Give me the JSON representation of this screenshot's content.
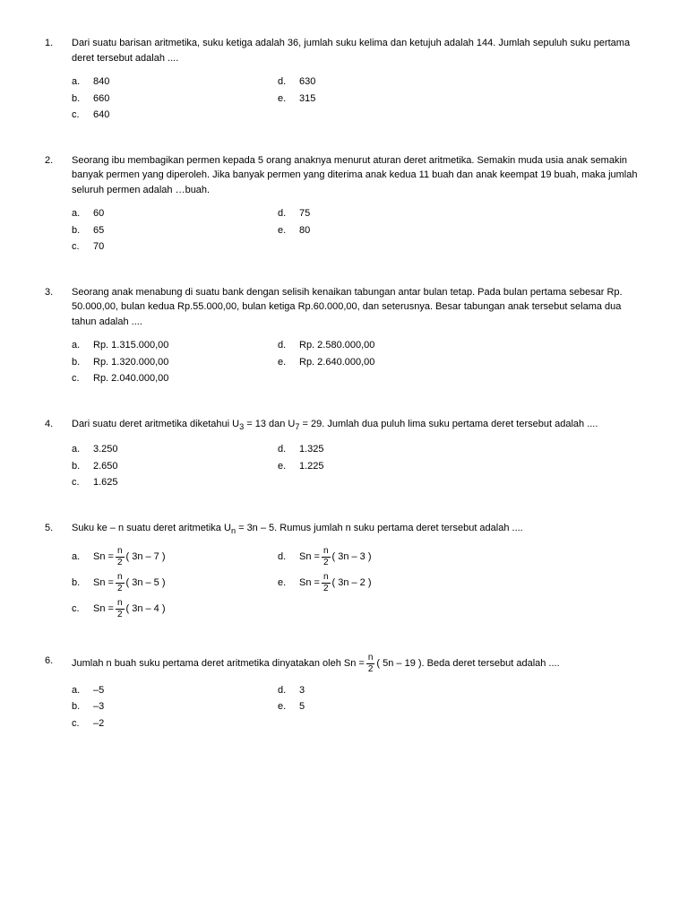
{
  "questions": [
    {
      "num": "1.",
      "text": "Dari suatu barisan aritmetika, suku ketiga adalah 36, jumlah suku kelima dan ketujuh adalah 144. Jumlah sepuluh suku pertama deret tersebut adalah ....",
      "left": [
        {
          "l": "a.",
          "v": "840"
        },
        {
          "l": "b.",
          "v": "660"
        },
        {
          "l": "c.",
          "v": "640"
        }
      ],
      "right": [
        {
          "l": "d.",
          "v": "630"
        },
        {
          "l": "e.",
          "v": "315"
        }
      ]
    },
    {
      "num": "2.",
      "text": "Seorang ibu membagikan permen kepada 5 orang anaknya menurut aturan deret aritmetika. Semakin muda usia anak semakin banyak permen yang diperoleh. Jika banyak permen yang diterima anak kedua 11 buah dan anak keempat 19 buah, maka jumlah seluruh permen adalah …buah.",
      "left": [
        {
          "l": "a.",
          "v": "60"
        },
        {
          "l": "b.",
          "v": "65"
        },
        {
          "l": "c.",
          "v": "70"
        }
      ],
      "right": [
        {
          "l": "d.",
          "v": "75"
        },
        {
          "l": "e.",
          "v": "80"
        }
      ]
    },
    {
      "num": "3.",
      "text": "Seorang anak menabung di suatu bank dengan selisih kenaikan tabungan antar bulan tetap. Pada bulan pertama sebesar Rp. 50.000,00, bulan kedua Rp.55.000,00, bulan ketiga Rp.60.000,00, dan seterusnya. Besar tabungan anak tersebut selama dua tahun adalah ....",
      "left": [
        {
          "l": "a.",
          "v": "Rp. 1.315.000,00"
        },
        {
          "l": "b.",
          "v": "Rp. 1.320.000,00"
        },
        {
          "l": "c.",
          "v": "Rp. 2.040.000,00"
        }
      ],
      "right": [
        {
          "l": "d.",
          "v": "Rp. 2.580.000,00"
        },
        {
          "l": "e.",
          "v": "Rp. 2.640.000,00"
        }
      ]
    },
    {
      "num": "4.",
      "text_html": "q4",
      "text_parts": {
        "pre": "Dari suatu deret aritmetika diketahui U",
        "sub1": "3",
        "mid": " = 13 dan U",
        "sub2": "7",
        "post": " = 29. Jumlah dua puluh lima suku pertama deret tersebut adalah ...."
      },
      "left": [
        {
          "l": "a.",
          "v": "3.250"
        },
        {
          "l": "b.",
          "v": "2.650"
        },
        {
          "l": "c.",
          "v": "1.625"
        }
      ],
      "right": [
        {
          "l": "d.",
          "v": "1.325"
        },
        {
          "l": "e.",
          "v": "1.225"
        }
      ]
    },
    {
      "num": "5.",
      "text_html": "q5",
      "text_parts": {
        "pre": "Suku ke – n suatu deret aritmetika U",
        "sub1": "n",
        "post": " = 3n – 5. Rumus jumlah n suku pertama deret tersebut adalah ...."
      },
      "frac_opts": {
        "left": [
          {
            "l": "a.",
            "pre": "Sn = ",
            "num": "n",
            "den": "2",
            "post": " ( 3n – 7 )"
          },
          {
            "l": "b.",
            "pre": "Sn = ",
            "num": "n",
            "den": "2",
            "post": " ( 3n – 5 )"
          },
          {
            "l": "c.",
            "pre": "Sn = ",
            "num": "n",
            "den": "2",
            "post": " ( 3n – 4 )"
          }
        ],
        "right": [
          {
            "l": "d.",
            "pre": "Sn = ",
            "num": "n",
            "den": "2",
            "post": " ( 3n – 3 )"
          },
          {
            "l": "e.",
            "pre": "Sn = ",
            "num": "n",
            "den": "2",
            "post": " ( 3n – 2 )"
          }
        ]
      }
    },
    {
      "num": "6.",
      "text_html": "q6",
      "text_parts": {
        "pre": "Jumlah n buah suku pertama deret aritmetika dinyatakan oleh Sn = ",
        "num": "n",
        "den": "2",
        "post": " ( 5n – 19 ). Beda deret tersebut adalah ...."
      },
      "left": [
        {
          "l": "a.",
          "v": "–5"
        },
        {
          "l": "b.",
          "v": "–3"
        },
        {
          "l": "c.",
          "v": "–2"
        }
      ],
      "right": [
        {
          "l": "d.",
          "v": "3"
        },
        {
          "l": "e.",
          "v": "5"
        }
      ]
    }
  ]
}
